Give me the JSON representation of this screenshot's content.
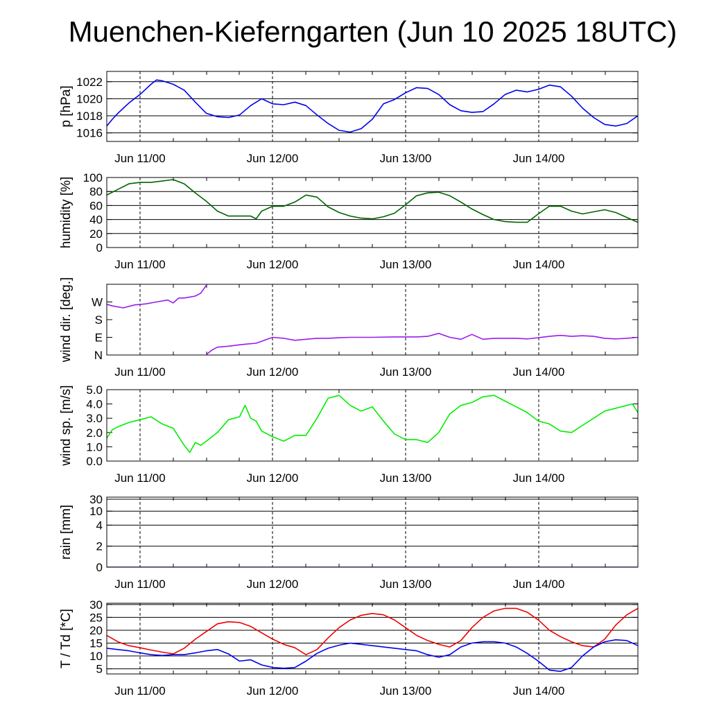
{
  "title": "Muenchen-Kieferngarten (Jun 10 2025 18UTC)",
  "chart_data": [
    {
      "type": "line",
      "ylabel": "p [hPa]",
      "x_unit": "hours since Jun 10 18UTC",
      "xlim": [
        0,
        96
      ],
      "ylim": [
        1015.0,
        1023.2
      ],
      "y_ticks": [
        1016,
        1018,
        1020,
        1022
      ],
      "y_tick_labels": [
        "1016",
        "1018",
        "1020",
        "1022"
      ],
      "x_tick_labels": [
        "Jun 11/00",
        "Jun 12/00",
        "Jun 13/00",
        "Jun 14/00"
      ],
      "grid": true,
      "series": [
        {
          "color": "#0000ee",
          "x": [
            0,
            1,
            2,
            3,
            4,
            5,
            6,
            7,
            8,
            9,
            10,
            12,
            14,
            16,
            18,
            20,
            22,
            24,
            26,
            28,
            30,
            32,
            34,
            36,
            38,
            40,
            42,
            44,
            46,
            48,
            50,
            52,
            54,
            56,
            58,
            60,
            62,
            64,
            66,
            68,
            70,
            72,
            74,
            76,
            78,
            80,
            82,
            84,
            86,
            88,
            90,
            92,
            94,
            96
          ],
          "y": [
            1016.8,
            1017.6,
            1018.3,
            1018.9,
            1019.5,
            1020.0,
            1020.5,
            1021.1,
            1021.7,
            1022.2,
            1022.1,
            1021.7,
            1021.0,
            1019.6,
            1018.3,
            1017.9,
            1017.8,
            1018.1,
            1019.2,
            1020.0,
            1019.4,
            1019.3,
            1019.6,
            1019.2,
            1018.1,
            1017.1,
            1016.3,
            1016.1,
            1016.5,
            1017.6,
            1019.4,
            1019.9,
            1020.7,
            1021.3,
            1021.2,
            1020.5,
            1019.3,
            1018.6,
            1018.4,
            1018.5,
            1019.4,
            1020.5,
            1021.0,
            1020.8,
            1021.1,
            1021.6,
            1021.4,
            1020.3,
            1018.9,
            1017.8,
            1017.0,
            1016.8,
            1017.1,
            1018.0
          ]
        }
      ]
    },
    {
      "type": "line",
      "ylabel": "humidity [%]",
      "x_unit": "hours since Jun 10 18UTC",
      "xlim": [
        0,
        96
      ],
      "ylim": [
        0,
        100
      ],
      "y_ticks": [
        0,
        20,
        40,
        60,
        80,
        100
      ],
      "y_tick_labels": [
        "0",
        "20",
        "40",
        "60",
        "80",
        "100"
      ],
      "x_tick_labels": [
        "Jun 11/00",
        "Jun 12/00",
        "Jun 13/00",
        "Jun 14/00"
      ],
      "grid": true,
      "series": [
        {
          "color": "#006400",
          "x": [
            0,
            2,
            4,
            6,
            8,
            10,
            12,
            14,
            16,
            18,
            20,
            22,
            24,
            26,
            27,
            28,
            30,
            32,
            34,
            36,
            38,
            40,
            42,
            44,
            46,
            48,
            50,
            52,
            54,
            56,
            58,
            60,
            62,
            64,
            66,
            68,
            70,
            72,
            74,
            76,
            78,
            80,
            82,
            84,
            86,
            88,
            90,
            92,
            94,
            96
          ],
          "y": [
            75,
            83,
            91,
            93,
            93,
            95,
            97,
            91,
            78,
            66,
            52,
            45,
            45,
            45,
            41,
            52,
            59,
            59,
            65,
            75,
            72,
            58,
            50,
            45,
            42,
            41,
            44,
            49,
            61,
            74,
            78,
            79,
            74,
            65,
            55,
            47,
            40,
            37,
            36,
            36,
            48,
            59,
            59,
            52,
            48,
            51,
            54,
            50,
            43,
            36
          ]
        }
      ]
    },
    {
      "type": "line",
      "ylabel": "wind dir. [deg.]",
      "x_unit": "hours since Jun 10 18UTC",
      "xlim": [
        0,
        96
      ],
      "ylim": [
        0,
        360
      ],
      "y_ticks": [
        0,
        90,
        180,
        270
      ],
      "y_tick_labels": [
        "N",
        "E",
        "S",
        "W"
      ],
      "x_tick_labels": [
        "Jun 11/00",
        "Jun 12/00",
        "Jun 13/00",
        "Jun 14/00"
      ],
      "grid": false,
      "series": [
        {
          "color": "#9a1aee",
          "x": [
            0,
            1,
            3,
            5,
            7,
            9,
            11,
            12,
            13,
            14,
            15,
            16,
            17,
            18
          ],
          "y": [
            258,
            250,
            240,
            255,
            260,
            270,
            280,
            265,
            290,
            290,
            295,
            300,
            315,
            355
          ]
        },
        {
          "color": "#9a1aee",
          "x": [
            18,
            19,
            20,
            22,
            24,
            25,
            27,
            28,
            29,
            30,
            32,
            34,
            36,
            38,
            40,
            42,
            44,
            48,
            52,
            54,
            56,
            58,
            60,
            62,
            64,
            66,
            68,
            70,
            72,
            74,
            76,
            78,
            80,
            82,
            84,
            86,
            88,
            90,
            92,
            94,
            96
          ],
          "y": [
            2,
            25,
            40,
            45,
            52,
            55,
            60,
            70,
            80,
            90,
            85,
            75,
            80,
            85,
            85,
            88,
            90,
            90,
            92,
            92,
            92,
            95,
            110,
            90,
            80,
            105,
            80,
            85,
            85,
            85,
            82,
            88,
            95,
            100,
            95,
            98,
            95,
            85,
            82,
            85,
            90
          ]
        }
      ]
    },
    {
      "type": "line",
      "ylabel": "wind sp. [m/s]",
      "x_unit": "hours since Jun 10 18UTC",
      "xlim": [
        0,
        96
      ],
      "ylim": [
        0.0,
        5.0
      ],
      "y_ticks": [
        0.0,
        1.0,
        2.0,
        3.0,
        4.0,
        5.0
      ],
      "y_tick_labels": [
        "0.0",
        "1.0",
        "2.0",
        "3.0",
        "4.0",
        "5.0"
      ],
      "x_tick_labels": [
        "Jun 11/00",
        "Jun 12/00",
        "Jun 13/00",
        "Jun 14/00"
      ],
      "grid": false,
      "series": [
        {
          "color": "#00ee00",
          "x": [
            0,
            1,
            2,
            4,
            6,
            8,
            10,
            12,
            13,
            14,
            15,
            16,
            17,
            18,
            20,
            22,
            24,
            25,
            26,
            27,
            28,
            30,
            32,
            34,
            36,
            38,
            40,
            42,
            44,
            46,
            48,
            50,
            52,
            54,
            56,
            58,
            60,
            62,
            64,
            66,
            68,
            70,
            72,
            74,
            76,
            78,
            80,
            82,
            84,
            86,
            88,
            90,
            92,
            94,
            95,
            96
          ],
          "y": [
            1.6,
            2.2,
            2.4,
            2.7,
            2.9,
            3.1,
            2.6,
            2.3,
            1.7,
            1.1,
            0.6,
            1.3,
            1.1,
            1.4,
            2.0,
            2.9,
            3.1,
            3.9,
            3.0,
            2.8,
            2.1,
            1.7,
            1.4,
            1.8,
            1.8,
            3.0,
            4.4,
            4.6,
            3.9,
            3.5,
            3.8,
            2.8,
            1.9,
            1.5,
            1.5,
            1.3,
            2.0,
            3.3,
            3.9,
            4.1,
            4.5,
            4.6,
            4.2,
            3.8,
            3.4,
            2.8,
            2.6,
            2.1,
            2.0,
            2.5,
            3.0,
            3.5,
            3.7,
            3.9,
            4.0,
            3.4
          ]
        }
      ]
    },
    {
      "type": "line",
      "ylabel": "rain [mm]",
      "x_unit": "hours since Jun 10 18UTC",
      "xlim": [
        0,
        96
      ],
      "y_scale": "nonlinear",
      "ylim": [
        0,
        30
      ],
      "y_ticks": [
        0,
        2,
        4,
        10,
        30
      ],
      "y_tick_labels": [
        "0",
        "2",
        "4",
        "10",
        "30"
      ],
      "x_tick_labels": [
        "Jun 11/00",
        "Jun 12/00",
        "Jun 13/00",
        "Jun 14/00"
      ],
      "grid": true,
      "series": [
        {
          "color": "#0000ee",
          "x": [
            0,
            96
          ],
          "y": [
            0,
            0
          ]
        }
      ]
    },
    {
      "type": "line",
      "ylabel": "T / Td [*C]",
      "x_unit": "hours since Jun 10 18UTC",
      "xlim": [
        0,
        96
      ],
      "ylim": [
        3,
        30.5
      ],
      "y_ticks": [
        5,
        10,
        15,
        20,
        25,
        30
      ],
      "y_tick_labels": [
        "5",
        "10",
        "15",
        "20",
        "25",
        "30"
      ],
      "x_tick_labels": [
        "Jun 11/00",
        "Jun 12/00",
        "Jun 13/00",
        "Jun 14/00"
      ],
      "grid": true,
      "series": [
        {
          "color": "#ee0000",
          "x": [
            0,
            2,
            4,
            6,
            8,
            10,
            12,
            14,
            16,
            18,
            20,
            22,
            24,
            26,
            28,
            30,
            32,
            34,
            36,
            38,
            40,
            42,
            44,
            46,
            48,
            50,
            52,
            54,
            56,
            58,
            60,
            62,
            64,
            66,
            68,
            70,
            72,
            74,
            76,
            78,
            80,
            82,
            84,
            86,
            88,
            90,
            92,
            94,
            96
          ],
          "y": [
            18.0,
            15.5,
            14.0,
            13.2,
            12.3,
            11.5,
            10.8,
            13.0,
            16.5,
            19.5,
            22.5,
            23.3,
            23.0,
            21.5,
            19.0,
            16.5,
            14.5,
            13.2,
            10.5,
            12.5,
            17.0,
            21.0,
            24.0,
            25.8,
            26.5,
            26.0,
            24.0,
            21.0,
            18.0,
            16.0,
            14.5,
            13.5,
            16.0,
            21.0,
            25.0,
            27.5,
            28.5,
            28.5,
            27.0,
            24.0,
            20.0,
            17.5,
            15.5,
            14.0,
            13.5,
            16.5,
            22.0,
            26.0,
            28.5
          ]
        },
        {
          "color": "#0000ee",
          "x": [
            0,
            2,
            4,
            6,
            8,
            10,
            12,
            14,
            16,
            18,
            20,
            22,
            24,
            26,
            28,
            30,
            32,
            34,
            36,
            38,
            40,
            42,
            44,
            46,
            48,
            50,
            52,
            54,
            56,
            58,
            60,
            62,
            64,
            66,
            68,
            70,
            72,
            74,
            76,
            78,
            80,
            82,
            84,
            86,
            88,
            90,
            92,
            94,
            96
          ],
          "y": [
            13.0,
            12.5,
            12.0,
            11.2,
            10.5,
            10.2,
            10.5,
            10.5,
            11.2,
            12.0,
            12.5,
            10.8,
            8.0,
            8.5,
            6.5,
            5.5,
            5.2,
            5.5,
            8.0,
            11.0,
            13.0,
            14.2,
            15.0,
            14.5,
            14.0,
            13.5,
            13.0,
            12.5,
            12.0,
            10.5,
            9.5,
            10.5,
            13.5,
            15.0,
            15.5,
            15.5,
            15.0,
            13.5,
            11.0,
            8.0,
            4.5,
            4.0,
            5.5,
            10.0,
            13.5,
            15.5,
            16.3,
            16.0,
            14.0
          ]
        }
      ]
    }
  ]
}
